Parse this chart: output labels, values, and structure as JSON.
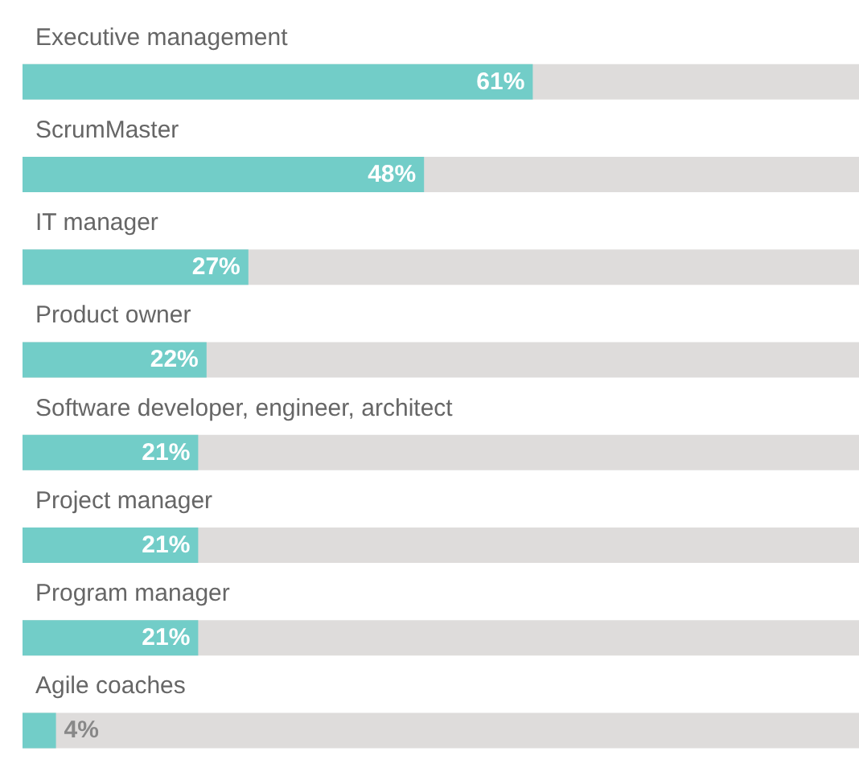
{
  "chart_data": {
    "type": "bar",
    "orientation": "horizontal",
    "categories": [
      "Executive management",
      "ScrumMaster",
      "IT manager",
      "Product owner",
      "Software developer, engineer, architect",
      "Project manager",
      "Program manager",
      "Agile coaches"
    ],
    "values": [
      61,
      48,
      27,
      22,
      21,
      21,
      21,
      4
    ],
    "value_labels": [
      "61%",
      "48%",
      "27%",
      "22%",
      "21%",
      "21%",
      "21%",
      "4%"
    ],
    "color": "#72cdc8",
    "xlim": [
      0,
      100
    ],
    "tick_labels": "y"
  }
}
